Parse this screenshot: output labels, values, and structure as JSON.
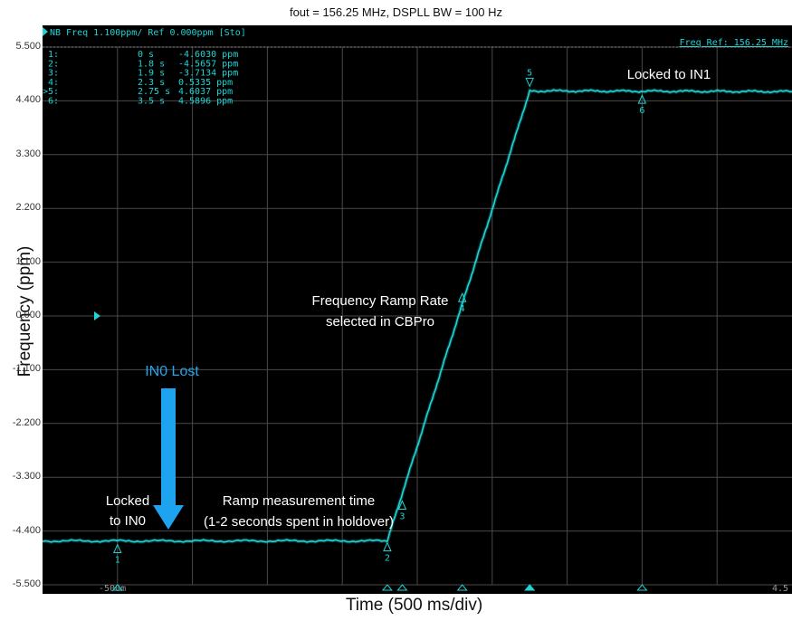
{
  "chart_data": {
    "type": "line",
    "title": "fout = 156.25 MHz, DSPLL BW = 100 Hz",
    "xlabel": "Time (500 ms/div)",
    "ylabel": "Frequency (ppm)",
    "header_left": "NB Freq 1.100ppm/ Ref 0.000ppm [Sto]",
    "header_right": "Freq Ref: 156.25 MHz",
    "xlim": [
      -0.5,
      4.5
    ],
    "ylim": [
      -5.5,
      5.5
    ],
    "x_tick_labels": [
      {
        "x": -0.5,
        "label": "-500m"
      },
      {
        "x": 4.5,
        "label": "4.5"
      }
    ],
    "y_ticks": [
      5.5,
      4.4,
      3.3,
      2.2,
      1.1,
      0,
      -1.1,
      -2.2,
      -3.3,
      -4.4,
      -5.5
    ],
    "y_tick_labels": [
      "5.500",
      "4.400",
      "3.300",
      "2.200",
      "1.100",
      "0.000",
      "-1.100",
      "-2.200",
      "-3.300",
      "-4.400",
      "-5.500"
    ],
    "grid": true,
    "series": [
      {
        "color": "#1fd4d4",
        "x": [
          -0.5,
          1.8,
          2.75,
          4.5
        ],
        "y": [
          -4.603,
          -4.603,
          4.6037,
          4.5896
        ]
      }
    ],
    "markers": [
      {
        "id": "1",
        "x": 0,
        "y": -4.603
      },
      {
        "id": "2",
        "x": 1.8,
        "y": -4.5657
      },
      {
        "id": "3",
        "x": 1.9,
        "y": -3.7134
      },
      {
        "id": "4",
        "x": 2.3,
        "y": 0.5335
      },
      {
        "id": "5",
        "x": 2.75,
        "y": 4.6037
      },
      {
        "id": "6",
        "x": 3.5,
        "y": 4.5896
      }
    ],
    "marker_table": [
      {
        "row": "1:",
        "time": "0 s",
        "value": "-4.6030 ppm"
      },
      {
        "row": "2:",
        "time": "1.8 s",
        "value": "-4.5657 ppm"
      },
      {
        "row": "3:",
        "time": "1.9 s",
        "value": "-3.7134 ppm"
      },
      {
        "row": "4:",
        "time": "2.3 s",
        "value": "0.5335 ppm"
      },
      {
        "row": ">5:",
        "time": "2.75 s",
        "value": "4.6037 ppm"
      },
      {
        "row": "6:",
        "time": "3.5 s",
        "value": "4.5896 ppm"
      }
    ],
    "annotations": {
      "locked_in1": "Locked to IN1",
      "ramp_rate_line1": "Frequency Ramp Rate",
      "ramp_rate_line2": "selected in CBPro",
      "in0_lost": "IN0 Lost",
      "locked_in0_line1": "Locked",
      "locked_in0_line2": "to IN0",
      "ramp_time_line1": "Ramp measurement time",
      "ramp_time_line2": "(1-2 seconds spent in holdover)"
    }
  }
}
